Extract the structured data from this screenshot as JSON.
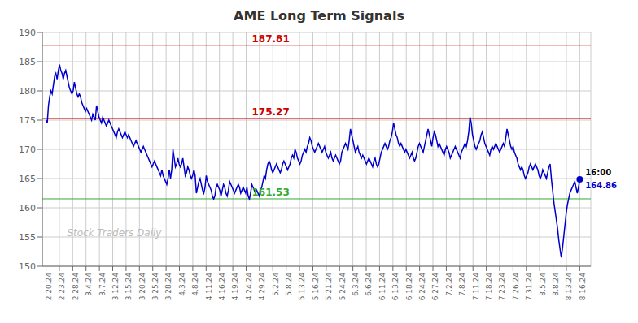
{
  "chart_data": {
    "type": "line",
    "title": "AME Long Term Signals",
    "color": "#0000cc",
    "grid": true,
    "xlim": [
      -3,
      442
    ],
    "xticks": [
      {
        "value": 0,
        "label": "2.20.24"
      },
      {
        "value": 10.825,
        "label": "2.23.24"
      },
      {
        "value": 21.65,
        "label": "2.28.24"
      },
      {
        "value": 32.475,
        "label": "3.4.24"
      },
      {
        "value": 43.3,
        "label": "3.7.24"
      },
      {
        "value": 54.125,
        "label": "3.12.24"
      },
      {
        "value": 64.95,
        "label": "3.15.24"
      },
      {
        "value": 75.775,
        "label": "3.20.24"
      },
      {
        "value": 86.6,
        "label": "3.25.24"
      },
      {
        "value": 97.425,
        "label": "3.28.24"
      },
      {
        "value": 108.25,
        "label": "4.3.24"
      },
      {
        "value": 119.075,
        "label": "4.8.24"
      },
      {
        "value": 129.9,
        "label": "4.11.24"
      },
      {
        "value": 140.725,
        "label": "4.16.24"
      },
      {
        "value": 151.55,
        "label": "4.19.24"
      },
      {
        "value": 162.375,
        "label": "4.24.24"
      },
      {
        "value": 173.2,
        "label": "4.29.24"
      },
      {
        "value": 184.025,
        "label": "5.2.24"
      },
      {
        "value": 194.85,
        "label": "5.8.24"
      },
      {
        "value": 205.675,
        "label": "5.13.24"
      },
      {
        "value": 216.5,
        "label": "5.16.24"
      },
      {
        "value": 227.325,
        "label": "5.21.24"
      },
      {
        "value": 238.15,
        "label": "5.24.24"
      },
      {
        "value": 248.975,
        "label": "6.3.24"
      },
      {
        "value": 259.8,
        "label": "6.6.24"
      },
      {
        "value": 270.625,
        "label": "6.11.24"
      },
      {
        "value": 281.45,
        "label": "6.13.24"
      },
      {
        "value": 292.275,
        "label": "6.18.24"
      },
      {
        "value": 303.1,
        "label": "6.24.24"
      },
      {
        "value": 313.925,
        "label": "6.27.24"
      },
      {
        "value": 324.75,
        "label": "7.2.24"
      },
      {
        "value": 335.575,
        "label": "7.8.24"
      },
      {
        "value": 346.4,
        "label": "7.11.24"
      },
      {
        "value": 357.225,
        "label": "7.18.24"
      },
      {
        "value": 368.05,
        "label": "7.23.24"
      },
      {
        "value": 378.875,
        "label": "7.26.24"
      },
      {
        "value": 389.7,
        "label": "7.31.24"
      },
      {
        "value": 400.525,
        "label": "8.5.24"
      },
      {
        "value": 411.35,
        "label": "8.8.24"
      },
      {
        "value": 422.175,
        "label": "8.13.24"
      },
      {
        "value": 433,
        "label": "8.16.24"
      }
    ],
    "ylim": [
      150,
      190
    ],
    "yticks": [
      150,
      155,
      160,
      165,
      170,
      175,
      180,
      185,
      190
    ],
    "hlines": [
      {
        "value": 187.81,
        "label": "187.81",
        "color": "#cc0000"
      },
      {
        "value": 175.27,
        "label": "175.27",
        "color": "#cc0000"
      },
      {
        "value": 161.53,
        "label": "161.53",
        "color": "#33aa33"
      }
    ],
    "last_point": {
      "label": "16:00",
      "value_label": "164.86"
    },
    "watermark": {
      "text": "Stock Traders Daily",
      "color": "#bbbbbb"
    },
    "values": [
      175.0,
      174.5,
      177.5,
      179.0,
      180.0,
      179.5,
      181.0,
      182.5,
      183.0,
      182.0,
      183.5,
      184.5,
      183.5,
      183.0,
      182.0,
      183.0,
      183.5,
      182.5,
      181.5,
      180.5,
      180.0,
      179.5,
      180.0,
      181.5,
      180.5,
      179.5,
      179.0,
      179.5,
      179.0,
      178.0,
      177.5,
      177.0,
      176.5,
      177.0,
      176.5,
      176.0,
      175.5,
      175.0,
      176.0,
      175.5,
      175.0,
      177.5,
      176.5,
      175.5,
      175.0,
      174.5,
      175.5,
      175.0,
      174.5,
      174.0,
      174.5,
      175.0,
      174.5,
      174.0,
      173.5,
      173.0,
      172.5,
      172.0,
      173.0,
      173.5,
      173.0,
      172.5,
      172.0,
      172.5,
      173.0,
      172.5,
      172.0,
      172.5,
      172.0,
      171.5,
      171.0,
      170.5,
      171.0,
      171.5,
      171.0,
      170.5,
      170.0,
      169.5,
      170.0,
      170.5,
      170.0,
      169.5,
      169.0,
      168.5,
      168.0,
      167.5,
      167.0,
      167.5,
      168.0,
      167.5,
      167.0,
      166.5,
      166.0,
      165.5,
      166.5,
      165.5,
      165.0,
      164.5,
      164.0,
      165.0,
      166.5,
      165.0,
      166.5,
      170.0,
      168.5,
      167.0,
      167.5,
      168.5,
      167.5,
      167.0,
      167.5,
      168.5,
      167.0,
      165.5,
      166.0,
      167.0,
      166.5,
      165.5,
      165.0,
      165.5,
      166.5,
      165.5,
      162.5,
      163.5,
      164.5,
      165.0,
      164.0,
      163.0,
      162.5,
      163.5,
      165.5,
      164.5,
      164.0,
      163.5,
      163.0,
      162.0,
      161.5,
      162.0,
      163.5,
      164.0,
      163.5,
      163.0,
      162.0,
      163.0,
      164.0,
      163.5,
      162.5,
      162.0,
      163.0,
      164.5,
      164.0,
      163.5,
      163.0,
      162.5,
      163.0,
      163.5,
      164.0,
      163.5,
      162.5,
      163.0,
      163.5,
      163.0,
      162.5,
      163.5,
      162.0,
      161.5,
      162.5,
      164.0,
      163.5,
      163.0,
      162.5,
      163.0,
      162.5,
      162.0,
      163.0,
      163.5,
      164.5,
      165.5,
      165.0,
      166.5,
      167.5,
      168.0,
      167.5,
      166.5,
      166.0,
      166.5,
      167.0,
      167.5,
      167.0,
      166.5,
      166.0,
      166.5,
      167.5,
      168.0,
      167.5,
      167.0,
      166.5,
      167.0,
      167.5,
      168.5,
      169.0,
      168.5,
      170.0,
      169.5,
      168.5,
      168.0,
      167.5,
      168.0,
      169.0,
      169.5,
      170.0,
      169.5,
      170.5,
      171.0,
      172.0,
      171.5,
      170.5,
      170.0,
      169.5,
      170.0,
      170.5,
      171.0,
      170.5,
      170.0,
      169.5,
      170.0,
      170.5,
      169.5,
      169.0,
      168.5,
      169.0,
      169.5,
      168.5,
      168.0,
      168.5,
      169.0,
      168.5,
      168.0,
      167.5,
      168.0,
      169.5,
      170.0,
      170.5,
      171.0,
      170.5,
      170.0,
      171.5,
      173.5,
      172.5,
      171.5,
      170.5,
      169.5,
      170.0,
      170.5,
      169.5,
      169.0,
      168.5,
      169.0,
      168.5,
      168.0,
      167.5,
      168.0,
      168.5,
      168.0,
      167.5,
      167.0,
      168.0,
      168.5,
      167.5,
      167.0,
      167.5,
      168.5,
      169.5,
      170.0,
      170.5,
      171.0,
      170.5,
      170.0,
      170.5,
      171.5,
      172.0,
      173.0,
      174.5,
      173.5,
      172.5,
      172.0,
      171.0,
      170.5,
      171.0,
      170.5,
      170.0,
      169.5,
      170.0,
      169.5,
      169.0,
      168.5,
      169.0,
      169.5,
      168.5,
      168.0,
      168.5,
      169.5,
      170.5,
      171.0,
      170.5,
      170.0,
      169.5,
      170.5,
      171.5,
      172.5,
      173.5,
      172.5,
      171.5,
      170.5,
      172.0,
      173.0,
      172.5,
      171.5,
      170.5,
      171.0,
      170.5,
      170.0,
      169.5,
      169.0,
      170.0,
      170.5,
      170.0,
      169.5,
      168.5,
      169.0,
      169.5,
      170.0,
      170.5,
      170.0,
      169.5,
      169.0,
      168.5,
      169.5,
      170.0,
      170.5,
      171.0,
      170.5,
      171.5,
      173.0,
      175.5,
      174.5,
      172.5,
      171.5,
      170.5,
      170.0,
      170.5,
      171.0,
      171.5,
      172.5,
      173.0,
      172.0,
      171.0,
      170.5,
      170.0,
      169.5,
      169.0,
      170.0,
      170.5,
      170.0,
      170.5,
      171.0,
      170.5,
      170.0,
      169.5,
      170.0,
      170.5,
      171.0,
      170.5,
      172.0,
      173.5,
      172.5,
      171.5,
      170.5,
      170.0,
      170.5,
      169.5,
      169.0,
      168.5,
      167.5,
      167.0,
      166.5,
      167.0,
      166.5,
      165.5,
      165.0,
      165.5,
      166.0,
      167.0,
      167.5,
      167.0,
      166.5,
      167.0,
      167.5,
      167.0,
      166.5,
      165.5,
      165.0,
      165.5,
      166.5,
      166.0,
      165.5,
      165.0,
      166.0,
      167.0,
      167.5,
      165.0,
      163.0,
      161.0,
      159.5,
      158.0,
      156.5,
      154.5,
      153.0,
      151.5,
      153.0,
      155.0,
      157.0,
      159.0,
      160.5,
      161.5,
      162.5,
      163.0,
      163.5,
      164.0,
      164.5,
      163.5,
      162.5,
      163.5,
      164.86
    ]
  }
}
